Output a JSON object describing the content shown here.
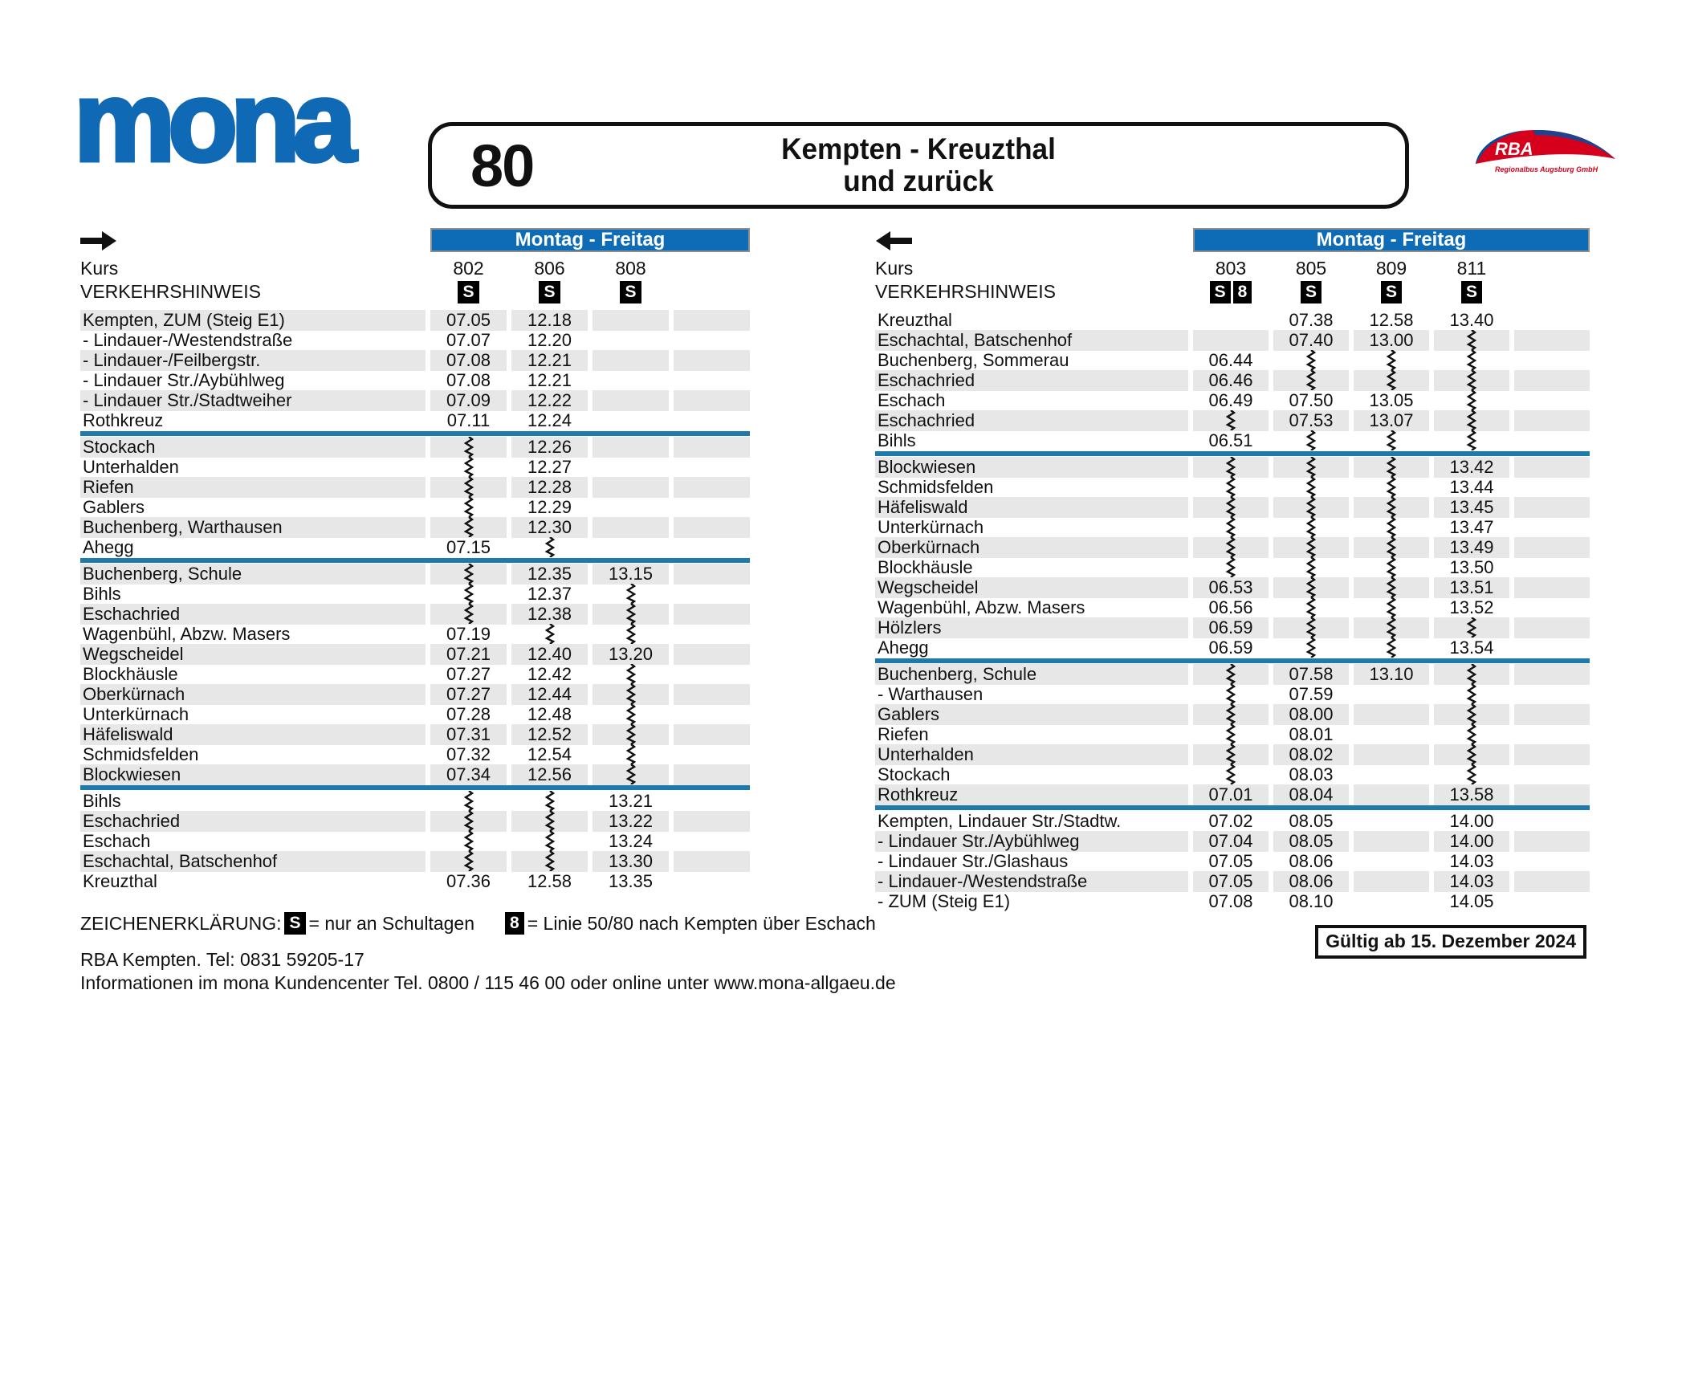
{
  "header": {
    "logo_text": "mona",
    "route_number": "80",
    "route_title_line1": "Kempten - Kreuzthal",
    "route_title_line2": "und zurück",
    "operator": {
      "name": "RBA",
      "subtitle": "Regionalbus Augsburg GmbH"
    }
  },
  "colors": {
    "brand_blue": "#1069B4",
    "band_blue": "#0E6CB7",
    "separator_teal": "#1E7AA8",
    "row_gray": "#E7E7E7",
    "rba_red": "#D6001C",
    "rba_blue": "#004F9F"
  },
  "tables": [
    {
      "direction": "hin",
      "arrow": "right",
      "day_band": "Montag - Freitag",
      "kurs_label": "Kurs",
      "hinweis_label": "VERKEHRSHINWEIS",
      "first_row_gray": true,
      "columns": [
        {
          "kurs": "802",
          "badges": [
            "S"
          ]
        },
        {
          "kurs": "806",
          "badges": [
            "S"
          ]
        },
        {
          "kurs": "808",
          "badges": [
            "S"
          ]
        },
        {
          "kurs": "",
          "badges": []
        }
      ],
      "rows": [
        {
          "label": "Kempten, ZUM (Steig E1)",
          "times": [
            "07.05",
            "12.18",
            "",
            ""
          ]
        },
        {
          "label": "- Lindauer-/Westendstraße",
          "times": [
            "07.07",
            "12.20",
            "",
            ""
          ]
        },
        {
          "label": "- Lindauer-/Feilbergstr.",
          "times": [
            "07.08",
            "12.21",
            "",
            ""
          ]
        },
        {
          "label": "- Lindauer Str./Aybühlweg",
          "times": [
            "07.08",
            "12.21",
            "",
            ""
          ]
        },
        {
          "label": "- Lindauer Str./Stadtweiher",
          "times": [
            "07.09",
            "12.22",
            "",
            ""
          ]
        },
        {
          "label": "Rothkreuz",
          "times": [
            "07.11",
            "12.24",
            "",
            ""
          ],
          "separator_after": true
        },
        {
          "label": "Stockach",
          "times": [
            "~",
            "12.26",
            "",
            ""
          ]
        },
        {
          "label": "Unterhalden",
          "times": [
            "~",
            "12.27",
            "",
            ""
          ]
        },
        {
          "label": "Riefen",
          "times": [
            "~",
            "12.28",
            "",
            ""
          ]
        },
        {
          "label": "Gablers",
          "times": [
            "~",
            "12.29",
            "",
            ""
          ]
        },
        {
          "label": "Buchenberg, Warthausen",
          "times": [
            "~",
            "12.30",
            "",
            ""
          ]
        },
        {
          "label": "Ahegg",
          "times": [
            "07.15",
            "~",
            "",
            ""
          ],
          "separator_after": true
        },
        {
          "label": "Buchenberg, Schule",
          "times": [
            "~",
            "12.35",
            "13.15",
            ""
          ]
        },
        {
          "label": "Bihls",
          "times": [
            "~",
            "12.37",
            "~",
            ""
          ]
        },
        {
          "label": "Eschachried",
          "times": [
            "~",
            "12.38",
            "~",
            ""
          ]
        },
        {
          "label": "Wagenbühl, Abzw. Masers",
          "times": [
            "07.19",
            "~",
            "~",
            ""
          ]
        },
        {
          "label": "Wegscheidel",
          "times": [
            "07.21",
            "12.40",
            "13.20",
            ""
          ]
        },
        {
          "label": "Blockhäusle",
          "times": [
            "07.27",
            "12.42",
            "~",
            ""
          ]
        },
        {
          "label": "Oberkürnach",
          "times": [
            "07.27",
            "12.44",
            "~",
            ""
          ]
        },
        {
          "label": "Unterkürnach",
          "times": [
            "07.28",
            "12.48",
            "~",
            ""
          ]
        },
        {
          "label": "Häfeliswald",
          "times": [
            "07.31",
            "12.52",
            "~",
            ""
          ]
        },
        {
          "label": "Schmidsfelden",
          "times": [
            "07.32",
            "12.54",
            "~",
            ""
          ]
        },
        {
          "label": "Blockwiesen",
          "times": [
            "07.34",
            "12.56",
            "~",
            ""
          ],
          "separator_after": true
        },
        {
          "label": "Bihls",
          "times": [
            "~",
            "~",
            "13.21",
            ""
          ]
        },
        {
          "label": "Eschachried",
          "times": [
            "~",
            "~",
            "13.22",
            ""
          ]
        },
        {
          "label": "Eschach",
          "times": [
            "~",
            "~",
            "13.24",
            ""
          ]
        },
        {
          "label": "Eschachtal, Batschenhof",
          "times": [
            "~",
            "~",
            "13.30",
            ""
          ]
        },
        {
          "label": "Kreuzthal",
          "times": [
            "07.36",
            "12.58",
            "13.35",
            ""
          ]
        }
      ]
    },
    {
      "direction": "zurück",
      "arrow": "left",
      "day_band": "Montag - Freitag",
      "kurs_label": "Kurs",
      "hinweis_label": "VERKEHRSHINWEIS",
      "first_row_gray": false,
      "columns": [
        {
          "kurs": "803",
          "badges": [
            "S",
            "8"
          ]
        },
        {
          "kurs": "805",
          "badges": [
            "S"
          ]
        },
        {
          "kurs": "809",
          "badges": [
            "S"
          ]
        },
        {
          "kurs": "811",
          "badges": [
            "S"
          ]
        },
        {
          "kurs": "",
          "badges": []
        }
      ],
      "rows": [
        {
          "label": "Kreuzthal",
          "times": [
            "",
            "07.38",
            "12.58",
            "13.40",
            ""
          ]
        },
        {
          "label": "Eschachtal, Batschenhof",
          "times": [
            "",
            "07.40",
            "13.00",
            "~",
            ""
          ]
        },
        {
          "label": "Buchenberg, Sommerau",
          "times": [
            "06.44",
            "~",
            "~",
            "~",
            ""
          ]
        },
        {
          "label": "Eschachried",
          "times": [
            "06.46",
            "~",
            "~",
            "~",
            ""
          ]
        },
        {
          "label": "Eschach",
          "times": [
            "06.49",
            "07.50",
            "13.05",
            "~",
            ""
          ]
        },
        {
          "label": "Eschachried",
          "times": [
            "~",
            "07.53",
            "13.07",
            "~",
            ""
          ]
        },
        {
          "label": "Bihls",
          "times": [
            "06.51",
            "~",
            "~",
            "~",
            ""
          ],
          "separator_after": true
        },
        {
          "label": "Blockwiesen",
          "times": [
            "~",
            "~",
            "~",
            "13.42",
            ""
          ]
        },
        {
          "label": "Schmidsfelden",
          "times": [
            "~",
            "~",
            "~",
            "13.44",
            ""
          ]
        },
        {
          "label": "Häfeliswald",
          "times": [
            "~",
            "~",
            "~",
            "13.45",
            ""
          ]
        },
        {
          "label": "Unterkürnach",
          "times": [
            "~",
            "~",
            "~",
            "13.47",
            ""
          ]
        },
        {
          "label": "Oberkürnach",
          "times": [
            "~",
            "~",
            "~",
            "13.49",
            ""
          ]
        },
        {
          "label": "Blockhäusle",
          "times": [
            "~",
            "~",
            "~",
            "13.50",
            ""
          ]
        },
        {
          "label": "Wegscheidel",
          "times": [
            "06.53",
            "~",
            "~",
            "13.51",
            ""
          ]
        },
        {
          "label": "Wagenbühl, Abzw. Masers",
          "times": [
            "06.56",
            "~",
            "~",
            "13.52",
            ""
          ]
        },
        {
          "label": "Hölzlers",
          "times": [
            "06.59",
            "~",
            "~",
            "~",
            ""
          ]
        },
        {
          "label": "Ahegg",
          "times": [
            "06.59",
            "~",
            "~",
            "13.54",
            ""
          ],
          "separator_after": true
        },
        {
          "label": "Buchenberg, Schule",
          "times": [
            "~",
            "07.58",
            "13.10",
            "~",
            ""
          ]
        },
        {
          "label": "- Warthausen",
          "times": [
            "~",
            "07.59",
            "",
            "~",
            ""
          ]
        },
        {
          "label": "Gablers",
          "times": [
            "~",
            "08.00",
            "",
            "~",
            ""
          ]
        },
        {
          "label": "Riefen",
          "times": [
            "~",
            "08.01",
            "",
            "~",
            ""
          ]
        },
        {
          "label": "Unterhalden",
          "times": [
            "~",
            "08.02",
            "",
            "~",
            ""
          ]
        },
        {
          "label": "Stockach",
          "times": [
            "~",
            "08.03",
            "",
            "~",
            ""
          ]
        },
        {
          "label": "Rothkreuz",
          "times": [
            "07.01",
            "08.04",
            "",
            "13.58",
            ""
          ],
          "separator_after": true
        },
        {
          "label": "Kempten, Lindauer Str./Stadtw.",
          "times": [
            "07.02",
            "08.05",
            "",
            "14.00",
            ""
          ]
        },
        {
          "label": "- Lindauer Str./Aybühlweg",
          "times": [
            "07.04",
            "08.05",
            "",
            "14.00",
            ""
          ]
        },
        {
          "label": "- Lindauer Str./Glashaus",
          "times": [
            "07.05",
            "08.06",
            "",
            "14.03",
            ""
          ]
        },
        {
          "label": "- Lindauer-/Westendstraße",
          "times": [
            "07.05",
            "08.06",
            "",
            "14.03",
            ""
          ]
        },
        {
          "label": "- ZUM (Steig E1)",
          "times": [
            "07.08",
            "08.10",
            "",
            "14.05",
            ""
          ]
        }
      ]
    }
  ],
  "legend": {
    "title": "ZEICHENERKLÄRUNG:",
    "items": [
      {
        "badge": "S",
        "text": "= nur an Schultagen"
      },
      {
        "badge": "8",
        "text": "= Linie 50/80 nach Kempten über Eschach"
      }
    ]
  },
  "validity": "Gültig ab 15. Dezember 2024",
  "footer": {
    "line1": "RBA Kempten. Tel:  0831 59205-17",
    "line2": "Informationen im mona Kundencenter Tel. 0800 / 115 46 00 oder online unter www.mona-allgaeu.de"
  }
}
